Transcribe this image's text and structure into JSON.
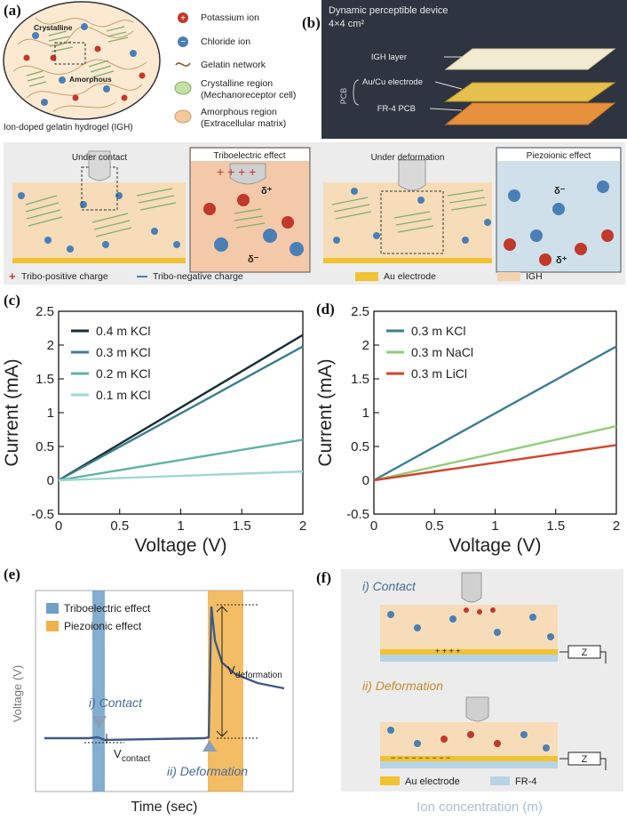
{
  "panels": {
    "a": {
      "label": "(a)",
      "crystalline_label": "Crystalline",
      "amorphous_label": "Amorphous",
      "caption": "Ion-doped gelatin hydrogel (IGH)",
      "legend": [
        {
          "icon": "potassium-icon",
          "text": "Potassium ion"
        },
        {
          "icon": "chloride-icon",
          "text": "Chloride ion"
        },
        {
          "icon": "gelatin-icon",
          "text": "Gelatin network"
        },
        {
          "icon": "crystalline-icon",
          "text": "Crystalline region"
        },
        {
          "icon": "crystalline-sub",
          "text": "(Mechanoreceptor cell)"
        },
        {
          "icon": "amorphous-icon",
          "text": "Amorphous region"
        },
        {
          "icon": "amorphous-sub",
          "text": "(Extracellular matrix)"
        }
      ]
    },
    "b": {
      "label": "(b)",
      "title": "Dynamic perceptible device",
      "size": "4×4 cm²",
      "layers": [
        "IGH layer",
        "Au/Cu electrode",
        "FR-4 PCB"
      ],
      "pcb_label": "PCB"
    },
    "schematic": {
      "contact_title": "Under contact",
      "tribo_title": "Triboelectric effect",
      "deform_title": "Under deformation",
      "piezo_title": "Piezoionic effect",
      "delta_plus": "δ⁺",
      "delta_minus": "δ⁻",
      "legend": {
        "tribo_pos": "Tribo-positive charge",
        "tribo_neg": "Tribo-negative charge",
        "au": "Au electrode",
        "igh": "IGH"
      }
    },
    "c": {
      "label": "(c)"
    },
    "d": {
      "label": "(d)"
    },
    "e": {
      "label": "(e)",
      "legend_tribo": "Triboelectric effect",
      "legend_piezo": "Piezoionic effect",
      "ylabel": "Voltage (V)",
      "xlabel": "Time (sec)",
      "contact_label": "i) Contact",
      "deform_label": "ii) Deformation",
      "v_contact": "V",
      "v_contact_sub": "contact",
      "v_deform": "V",
      "v_deform_sub": "deformation"
    },
    "f": {
      "label": "(f)",
      "contact_label": "i) Contact",
      "deform_label": "ii) Deformation",
      "z_label": "Z",
      "legend_au": "Au electrode",
      "legend_fr4": "FR-4",
      "xlabel": "Ion concentration (m)"
    }
  },
  "chart_data": [
    {
      "id": "c",
      "type": "line",
      "xlabel": "Voltage (V)",
      "ylabel": "Current (mA)",
      "xlim": [
        0,
        2
      ],
      "ylim": [
        -0.5,
        2.5
      ],
      "xticks": [
        "0",
        "0.5",
        "1",
        "1.5",
        "2"
      ],
      "yticks": [
        "-0.5",
        "0",
        "0.5",
        "1",
        "1.5",
        "2",
        "2.5"
      ],
      "series": [
        {
          "name": "0.4 m KCl",
          "color": "#1a2e35",
          "x": [
            0,
            2
          ],
          "y": [
            0,
            2.15
          ]
        },
        {
          "name": "0.3 m KCl",
          "color": "#3c7f8c",
          "x": [
            0,
            2
          ],
          "y": [
            0,
            1.98
          ]
        },
        {
          "name": "0.2 m KCl",
          "color": "#5fb3a8",
          "x": [
            0,
            2
          ],
          "y": [
            0,
            0.6
          ]
        },
        {
          "name": "0.1 m KCl",
          "color": "#9fd8d0",
          "x": [
            0,
            2
          ],
          "y": [
            0,
            0.13
          ]
        }
      ]
    },
    {
      "id": "d",
      "type": "line",
      "xlabel": "Voltage (V)",
      "ylabel": "Current (mA)",
      "xlim": [
        0,
        2
      ],
      "ylim": [
        -0.5,
        2.5
      ],
      "xticks": [
        "0",
        "0.5",
        "1",
        "1.5",
        "2"
      ],
      "yticks": [
        "-0.5",
        "0",
        "0.5",
        "1",
        "1.5",
        "2",
        "2.5"
      ],
      "series": [
        {
          "name": "0.3 m KCl",
          "color": "#3f7d92",
          "x": [
            0,
            2
          ],
          "y": [
            0,
            1.98
          ]
        },
        {
          "name": "0.3 m NaCl",
          "color": "#8fcf7a",
          "x": [
            0,
            2
          ],
          "y": [
            0,
            0.8
          ]
        },
        {
          "name": "0.3 m LiCl",
          "color": "#d2452c",
          "x": [
            0,
            2
          ],
          "y": [
            0,
            0.52
          ]
        }
      ]
    }
  ]
}
